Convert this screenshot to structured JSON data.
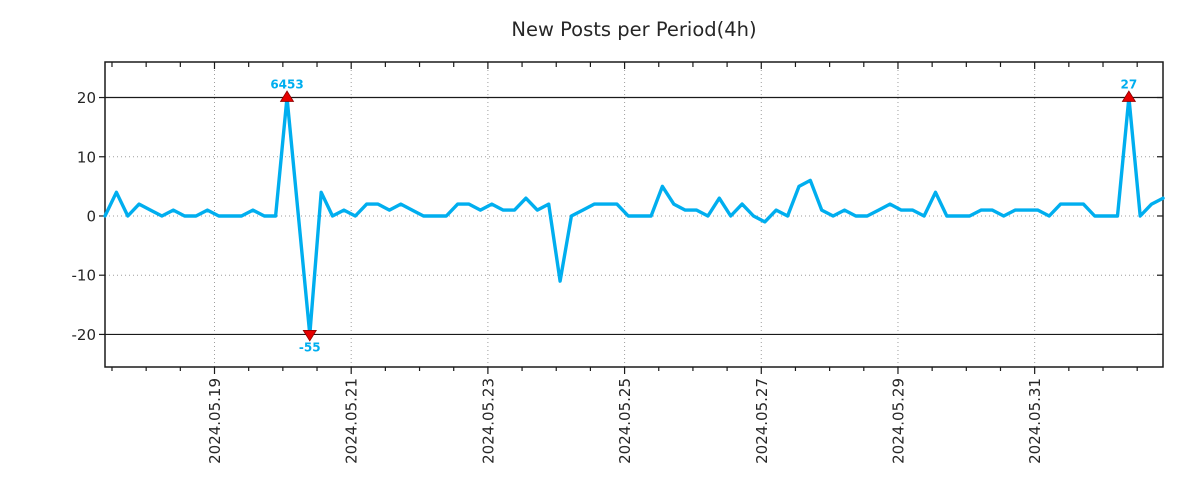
{
  "chart_data": {
    "type": "line",
    "title": "New Posts per Period(4h)",
    "period_hours": 4,
    "x_major_tick_labels": [
      "2024.05.19",
      "2024.05.21",
      "2024.05.23",
      "2024.05.25",
      "2024.05.27",
      "2024.05.29",
      "2024.05.31"
    ],
    "x_minor_tick_hours": 12,
    "y_ticks": [
      20,
      10,
      0,
      -10,
      -20
    ],
    "y_tick_labels": [
      "20",
      "10",
      "0",
      "-10",
      "-20"
    ],
    "ylim": [
      -25.5,
      26
    ],
    "clip_level": 20,
    "grid": true,
    "legend": null,
    "x_axis": {
      "first_major_frac": 0.1035,
      "major_spacing_frac": 0.1292,
      "minors_per_major": 4
    },
    "values": [
      0,
      4,
      0,
      2,
      1,
      0,
      1,
      0,
      0,
      1,
      0,
      0,
      0,
      1,
      0,
      0,
      6453,
      0,
      -55,
      4,
      0,
      1,
      0,
      2,
      2,
      1,
      2,
      1,
      0,
      0,
      0,
      2,
      2,
      1,
      2,
      1,
      1,
      3,
      1,
      2,
      -11,
      0,
      1,
      2,
      2,
      2,
      0,
      0,
      0,
      5,
      2,
      1,
      1,
      0,
      3,
      0,
      2,
      0,
      -1,
      1,
      0,
      5,
      6,
      1,
      0,
      1,
      0,
      0,
      1,
      2,
      1,
      1,
      0,
      4,
      0,
      0,
      0,
      1,
      1,
      0,
      1,
      1,
      1,
      0,
      2,
      2,
      2,
      0,
      0,
      0,
      27,
      0,
      2,
      3
    ],
    "annotations": [
      {
        "index": 16,
        "label": "6453",
        "value": 6453,
        "placement": "above",
        "marker": "triangle-up"
      },
      {
        "index": 18,
        "label": "-55",
        "value": -55,
        "placement": "below",
        "marker": "triangle-down"
      },
      {
        "index": 90,
        "label": "27",
        "value": 27,
        "placement": "above",
        "marker": "triangle-up"
      }
    ],
    "colors": {
      "line": "#00AEEF",
      "marker": "#E60000",
      "marker_edge": "#8B0000",
      "annotation_text": "#00AEEF",
      "grid": "#9e9e9e",
      "clip_line": "#1a1a1a",
      "axis": "#1a1a1a",
      "text": "#262626"
    }
  }
}
